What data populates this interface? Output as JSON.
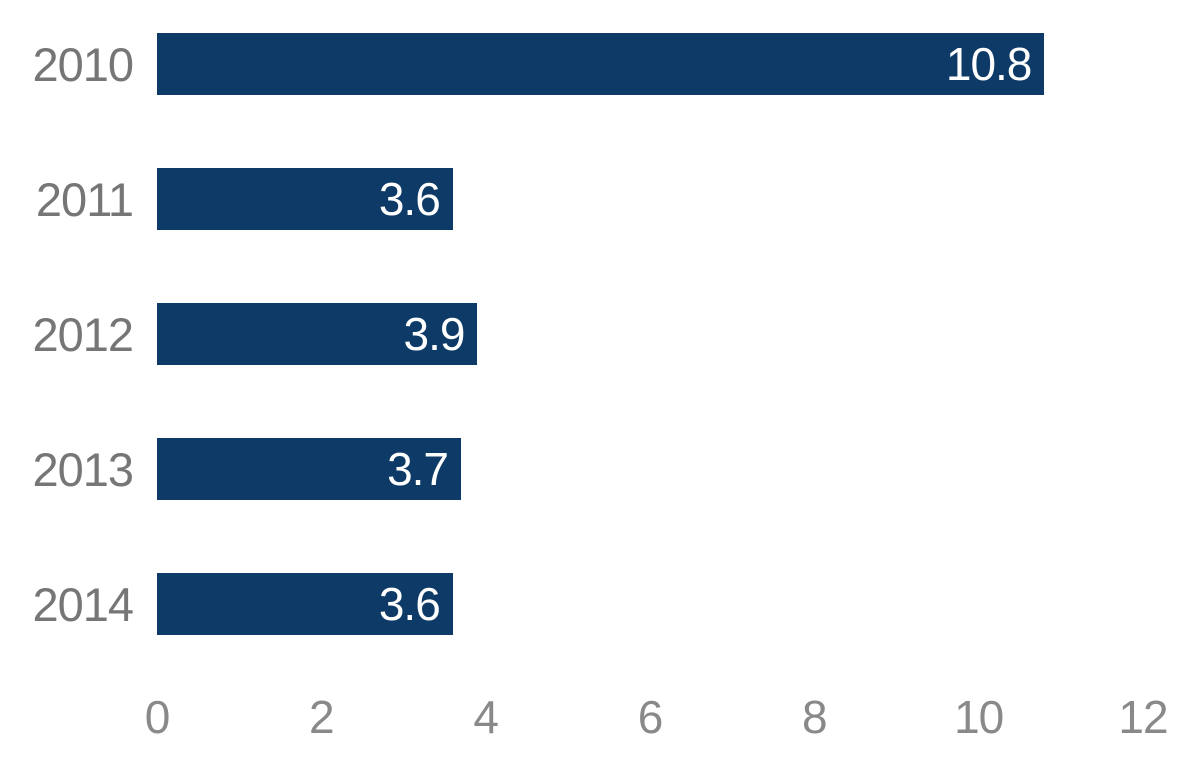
{
  "chart_data": {
    "type": "bar",
    "orientation": "horizontal",
    "categories": [
      "2010",
      "2011",
      "2012",
      "2013",
      "2014"
    ],
    "values": [
      10.8,
      3.6,
      3.9,
      3.7,
      3.6
    ],
    "value_labels": [
      "10.8",
      "3.6",
      "3.9",
      "3.7",
      "3.6"
    ],
    "x_tick_labels": [
      "0",
      "2",
      "4",
      "6",
      "8",
      "10",
      "12"
    ],
    "x_ticks": [
      0,
      2,
      4,
      6,
      8,
      10,
      12
    ],
    "xlim": [
      0,
      12
    ],
    "grid": false,
    "legend": null,
    "colors": {
      "bar": "#0d3a66",
      "category_label": "#767676",
      "value_label": "#ffffff",
      "axis_tick_label": "#898989",
      "background": "#ffffff"
    }
  }
}
